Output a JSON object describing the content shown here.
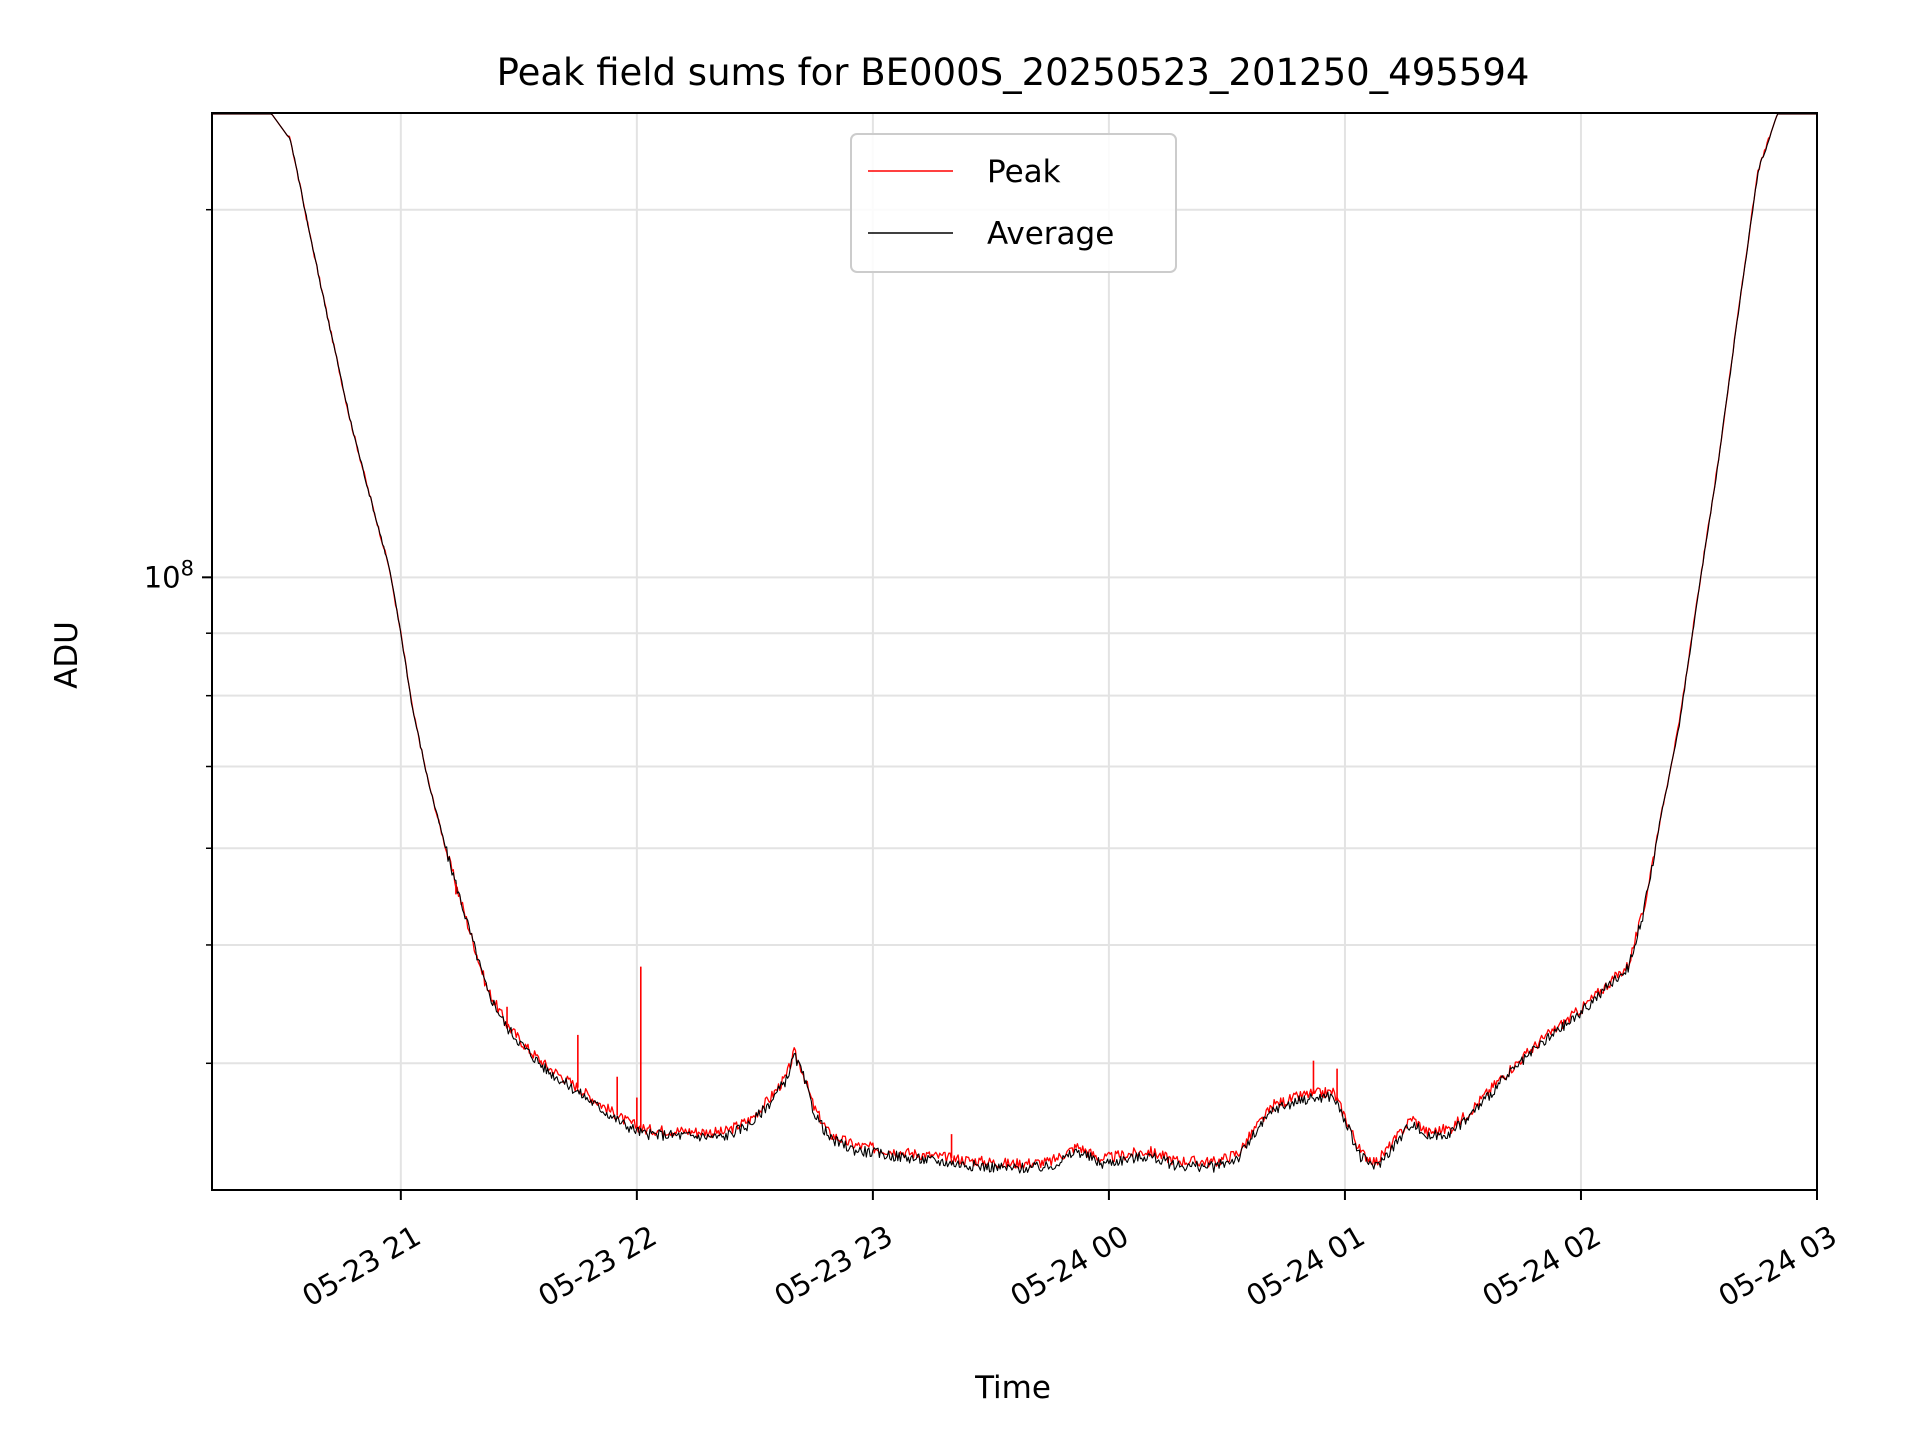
{
  "chart_data": {
    "type": "line",
    "title": "Peak field sums for BE000S_20250523_201250_495594",
    "xlabel": "Time",
    "ylabel": "ADU",
    "y_scale": "log",
    "grid": true,
    "legend_position": "top-center",
    "x_range": [
      "2025-05-23 20:12",
      "2025-05-24 03:00"
    ],
    "y_range": [
      31500000,
      240000000
    ],
    "x_ticks": [
      {
        "t": "2025-05-23 21:00",
        "label": "05-23 21"
      },
      {
        "t": "2025-05-23 22:00",
        "label": "05-23 22"
      },
      {
        "t": "2025-05-23 23:00",
        "label": "05-23 23"
      },
      {
        "t": "2025-05-24 00:00",
        "label": "05-24 00"
      },
      {
        "t": "2025-05-24 01:00",
        "label": "05-24 01"
      },
      {
        "t": "2025-05-24 02:00",
        "label": "05-24 02"
      },
      {
        "t": "2025-05-24 03:00",
        "label": "05-24 03"
      }
    ],
    "y_major_ticks": [
      {
        "value": 100000000,
        "label_base": "10",
        "label_exp": "8"
      }
    ],
    "y_minor_ticks": [
      40000000,
      50000000,
      60000000,
      70000000,
      80000000,
      90000000,
      200000000
    ],
    "series": [
      {
        "name": "Peak",
        "color": "#ff0000",
        "points": [
          [
            "2025-05-23 20:12",
            240000000
          ],
          [
            "2025-05-23 20:27",
            240000000
          ],
          [
            "2025-05-23 20:32",
            228000000
          ],
          [
            "2025-05-23 20:37",
            190000000
          ],
          [
            "2025-05-23 20:42",
            160000000
          ],
          [
            "2025-05-23 20:47",
            135000000
          ],
          [
            "2025-05-23 20:52",
            117000000
          ],
          [
            "2025-05-23 20:57",
            102000000
          ],
          [
            "2025-05-23 21:00",
            90000000
          ],
          [
            "2025-05-23 21:03",
            78000000
          ],
          [
            "2025-05-23 21:07",
            68000000
          ],
          [
            "2025-05-23 21:12",
            59000000
          ],
          [
            "2025-05-23 21:17",
            52000000
          ],
          [
            "2025-05-23 21:22",
            46000000
          ],
          [
            "2025-05-23 21:27",
            43000000
          ],
          [
            "2025-05-23 21:32",
            41200000
          ],
          [
            "2025-05-23 21:37",
            39800000
          ],
          [
            "2025-05-23 21:42",
            38800000
          ],
          [
            "2025-05-23 21:47",
            37800000
          ],
          [
            "2025-05-23 21:52",
            36800000
          ],
          [
            "2025-05-23 21:57",
            35900000
          ],
          [
            "2025-05-23 22:02",
            35300000
          ],
          [
            "2025-05-23 22:12",
            35200000
          ],
          [
            "2025-05-23 22:22",
            35100000
          ],
          [
            "2025-05-23 22:29",
            36000000
          ],
          [
            "2025-05-23 22:34",
            37500000
          ],
          [
            "2025-05-23 22:38",
            39000000
          ],
          [
            "2025-05-23 22:40",
            40800000
          ],
          [
            "2025-05-23 22:42",
            39500000
          ],
          [
            "2025-05-23 22:45",
            36800000
          ],
          [
            "2025-05-23 22:49",
            35000000
          ],
          [
            "2025-05-23 22:55",
            34300000
          ],
          [
            "2025-05-23 23:05",
            33900000
          ],
          [
            "2025-05-23 23:15",
            33600000
          ],
          [
            "2025-05-23 23:25",
            33300000
          ],
          [
            "2025-05-23 23:35",
            33100000
          ],
          [
            "2025-05-23 23:45",
            33200000
          ],
          [
            "2025-05-23 23:52",
            34200000
          ],
          [
            "2025-05-23 23:58",
            33400000
          ],
          [
            "2025-05-24 00:05",
            33700000
          ],
          [
            "2025-05-24 00:10",
            33900000
          ],
          [
            "2025-05-24 00:17",
            33300000
          ],
          [
            "2025-05-24 00:27",
            33200000
          ],
          [
            "2025-05-24 00:33",
            33800000
          ],
          [
            "2025-05-24 00:37",
            35300000
          ],
          [
            "2025-05-24 00:42",
            37000000
          ],
          [
            "2025-05-24 00:50",
            37700000
          ],
          [
            "2025-05-24 00:57",
            37900000
          ],
          [
            "2025-05-24 01:00",
            36200000
          ],
          [
            "2025-05-24 01:04",
            33800000
          ],
          [
            "2025-05-24 01:08",
            33200000
          ],
          [
            "2025-05-24 01:13",
            34700000
          ],
          [
            "2025-05-24 01:17",
            36100000
          ],
          [
            "2025-05-24 01:21",
            35100000
          ],
          [
            "2025-05-24 01:27",
            35400000
          ],
          [
            "2025-05-24 01:32",
            36600000
          ],
          [
            "2025-05-24 01:40",
            39000000
          ],
          [
            "2025-05-24 01:50",
            41800000
          ],
          [
            "2025-05-24 02:00",
            44300000
          ],
          [
            "2025-05-24 02:07",
            46500000
          ],
          [
            "2025-05-24 02:12",
            48100000
          ],
          [
            "2025-05-24 02:16",
            53500000
          ],
          [
            "2025-05-24 02:20",
            63000000
          ],
          [
            "2025-05-24 02:25",
            76000000
          ],
          [
            "2025-05-24 02:30",
            98000000
          ],
          [
            "2025-05-24 02:35",
            125000000
          ],
          [
            "2025-05-24 02:40",
            165000000
          ],
          [
            "2025-05-24 02:45",
            215000000
          ],
          [
            "2025-05-24 02:50",
            240000000
          ],
          [
            "2025-05-24 03:00",
            240000000
          ]
        ]
      },
      {
        "name": "Average",
        "color": "#000000",
        "points": [
          [
            "2025-05-23 20:12",
            240000000
          ],
          [
            "2025-05-23 20:27",
            240000000
          ],
          [
            "2025-05-23 20:32",
            228000000
          ],
          [
            "2025-05-23 20:37",
            190000000
          ],
          [
            "2025-05-23 20:42",
            160000000
          ],
          [
            "2025-05-23 20:47",
            135000000
          ],
          [
            "2025-05-23 20:52",
            117000000
          ],
          [
            "2025-05-23 20:57",
            102000000
          ],
          [
            "2025-05-23 21:00",
            90000000
          ],
          [
            "2025-05-23 21:03",
            78000000
          ],
          [
            "2025-05-23 21:07",
            68000000
          ],
          [
            "2025-05-23 21:12",
            59000000
          ],
          [
            "2025-05-23 21:17",
            52000000
          ],
          [
            "2025-05-23 21:22",
            45800000
          ],
          [
            "2025-05-23 21:27",
            42800000
          ],
          [
            "2025-05-23 21:32",
            41000000
          ],
          [
            "2025-05-23 21:37",
            39500000
          ],
          [
            "2025-05-23 21:42",
            38500000
          ],
          [
            "2025-05-23 21:47",
            37500000
          ],
          [
            "2025-05-23 21:52",
            36500000
          ],
          [
            "2025-05-23 21:57",
            35600000
          ],
          [
            "2025-05-23 22:02",
            35000000
          ],
          [
            "2025-05-23 22:12",
            34900000
          ],
          [
            "2025-05-23 22:22",
            34800000
          ],
          [
            "2025-05-23 22:29",
            35700000
          ],
          [
            "2025-05-23 22:34",
            37200000
          ],
          [
            "2025-05-23 22:38",
            38800000
          ],
          [
            "2025-05-23 22:40",
            40600000
          ],
          [
            "2025-05-23 22:42",
            39300000
          ],
          [
            "2025-05-23 22:45",
            36500000
          ],
          [
            "2025-05-23 22:49",
            34700000
          ],
          [
            "2025-05-23 22:55",
            34000000
          ],
          [
            "2025-05-23 23:05",
            33600000
          ],
          [
            "2025-05-23 23:15",
            33300000
          ],
          [
            "2025-05-23 23:25",
            33000000
          ],
          [
            "2025-05-23 23:35",
            32800000
          ],
          [
            "2025-05-23 23:45",
            32900000
          ],
          [
            "2025-05-23 23:52",
            33900000
          ],
          [
            "2025-05-23 23:58",
            33100000
          ],
          [
            "2025-05-24 00:05",
            33400000
          ],
          [
            "2025-05-24 00:10",
            33600000
          ],
          [
            "2025-05-24 00:17",
            33000000
          ],
          [
            "2025-05-24 00:27",
            32900000
          ],
          [
            "2025-05-24 00:33",
            33500000
          ],
          [
            "2025-05-24 00:37",
            35000000
          ],
          [
            "2025-05-24 00:42",
            36700000
          ],
          [
            "2025-05-24 00:50",
            37400000
          ],
          [
            "2025-05-24 00:57",
            37600000
          ],
          [
            "2025-05-24 01:00",
            35900000
          ],
          [
            "2025-05-24 01:04",
            33500000
          ],
          [
            "2025-05-24 01:08",
            32900000
          ],
          [
            "2025-05-24 01:13",
            34400000
          ],
          [
            "2025-05-24 01:17",
            35800000
          ],
          [
            "2025-05-24 01:21",
            34800000
          ],
          [
            "2025-05-24 01:27",
            35100000
          ],
          [
            "2025-05-24 01:32",
            36300000
          ],
          [
            "2025-05-24 01:40",
            38700000
          ],
          [
            "2025-05-24 01:50",
            41500000
          ],
          [
            "2025-05-24 02:00",
            44000000
          ],
          [
            "2025-05-24 02:07",
            46300000
          ],
          [
            "2025-05-24 02:12",
            47900000
          ],
          [
            "2025-05-24 02:16",
            53300000
          ],
          [
            "2025-05-24 02:20",
            62800000
          ],
          [
            "2025-05-24 02:25",
            75800000
          ],
          [
            "2025-05-24 02:30",
            97800000
          ],
          [
            "2025-05-24 02:35",
            124800000
          ],
          [
            "2025-05-24 02:40",
            164800000
          ],
          [
            "2025-05-24 02:45",
            214800000
          ],
          [
            "2025-05-24 02:50",
            240000000
          ],
          [
            "2025-05-24 03:00",
            240000000
          ]
        ]
      }
    ],
    "peak_spikes": [
      [
        "2025-05-23 21:14",
        55000000
      ],
      [
        "2025-05-23 21:27",
        44500000
      ],
      [
        "2025-05-23 21:45",
        42200000
      ],
      [
        "2025-05-23 21:55",
        39000000
      ],
      [
        "2025-05-23 22:00",
        37500000
      ],
      [
        "2025-05-23 22:01",
        48000000
      ],
      [
        "2025-05-23 23:20",
        35000000
      ],
      [
        "2025-05-24 00:52",
        40200000
      ],
      [
        "2025-05-24 00:58",
        39600000
      ]
    ]
  }
}
